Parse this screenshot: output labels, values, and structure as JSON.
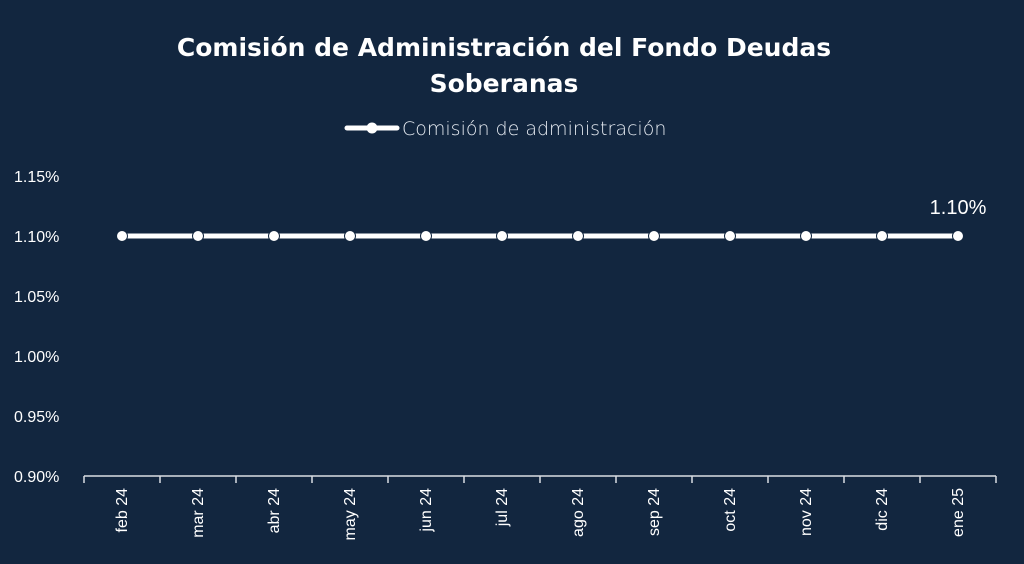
{
  "chart_data": {
    "type": "line",
    "title": "Comisión de Administración del Fondo Deudas Soberanas",
    "title_lines": [
      "Comisión de Administración del Fondo Deudas",
      "Soberanas"
    ],
    "xlabel": "",
    "ylabel": "",
    "categories": [
      "feb 24",
      "mar 24",
      "abr 24",
      "may 24",
      "jun 24",
      "jul 24",
      "ago 24",
      "sep 24",
      "oct 24",
      "nov 24",
      "dic 24",
      "ene 25"
    ],
    "series": [
      {
        "name": "Comisión de administración",
        "values": [
          1.1,
          1.1,
          1.1,
          1.1,
          1.1,
          1.1,
          1.1,
          1.1,
          1.1,
          1.1,
          1.1,
          1.1
        ],
        "color": "#ffffff"
      }
    ],
    "ylim": [
      0.9,
      1.15
    ],
    "yticks": [
      0.9,
      0.95,
      1.0,
      1.05,
      1.1,
      1.15
    ],
    "ytick_labels": [
      "0.90%",
      "0.95%",
      "1.00%",
      "1.05%",
      "1.10%",
      "1.15%"
    ],
    "data_labels": [
      {
        "index": 11,
        "text": "1.10%"
      }
    ],
    "legend_position": "top-center",
    "grid": false,
    "background_color": "#12263f"
  }
}
